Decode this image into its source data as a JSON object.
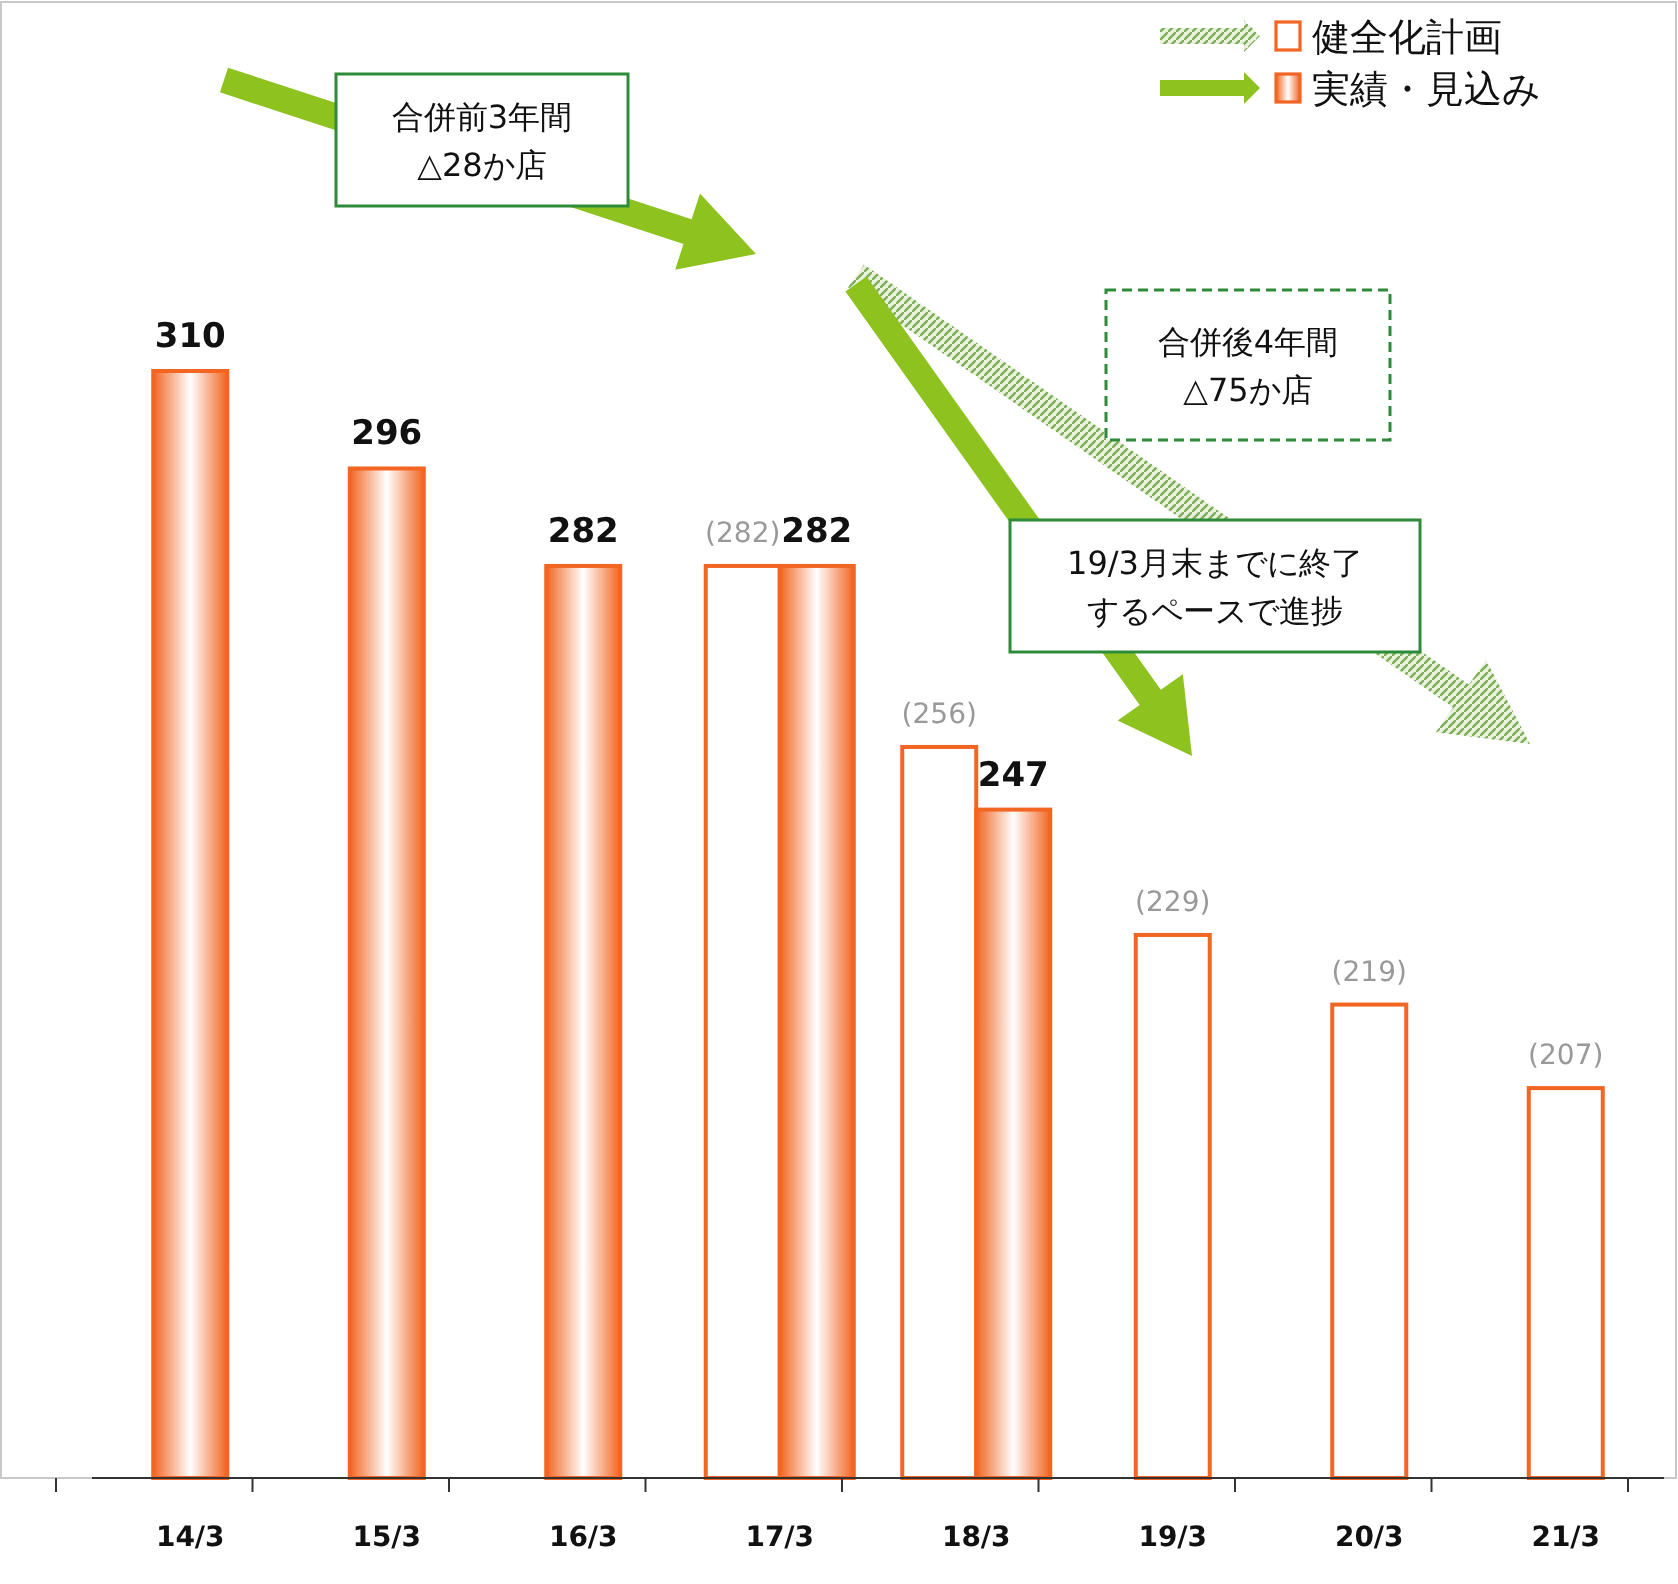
{
  "chart_data": {
    "type": "bar",
    "categories": [
      "14/3",
      "15/3",
      "16/3",
      "17/3",
      "18/3",
      "19/3",
      "20/3",
      "21/3"
    ],
    "series": [
      {
        "name": "健全化計画",
        "color": "#f26522",
        "values": [
          null,
          null,
          null,
          282,
          256,
          229,
          219,
          207
        ],
        "value_labels": [
          null,
          null,
          null,
          "(282)",
          "(256)",
          "(229)",
          "(219)",
          "(207)"
        ]
      },
      {
        "name": "実績・見込み",
        "color": "#f26522",
        "values": [
          310,
          296,
          282,
          282,
          247,
          null,
          null,
          null
        ],
        "value_labels": [
          "310",
          "296",
          "282",
          "282",
          "247",
          null,
          null,
          null
        ]
      }
    ],
    "legend": "top right",
    "ylim": [
      151,
      363
    ],
    "annotations": [
      "合併前3年間△28か店",
      "合併後4年間△75か店",
      "19/3月末までに終了するペースで進捗"
    ]
  }
}
